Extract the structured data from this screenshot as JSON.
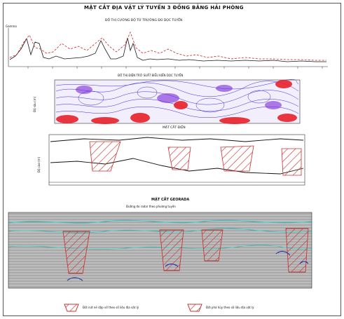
{
  "title": "MẶT CẮT ĐỊA VẬT LÝ TUYẾN 3  ĐỒNG BẰNG HẢI PHÒNG",
  "panels": {
    "magnetic": {
      "caption": "ĐỒ THỊ CƯỜNG ĐỘ TỪ TRƯỜNG ĐO DỌC TUYẾN",
      "ylabel": "Gamma"
    },
    "resistivity": {
      "caption": "ĐỒ THỊ ĐIỆN TRỞ SUẤT BIỂU KIẾN DỌC TUYẾN",
      "ylabel": "Độ sâu (m)",
      "bottom": "MẶT CẮT ĐIỆN"
    },
    "geology": {
      "ylabel": "Độ cao (m)"
    },
    "gpr": {
      "caption": "MẶT CẮT GEORADA",
      "subcaption": "Đường đo radar theo phương tuyến"
    }
  },
  "legend": [
    {
      "label": "Đới nứt nẻ dập vỡ theo số liệu địa vật lý",
      "color": "#d9534f"
    },
    {
      "label": "Đới phá hủy theo số liệu địa vật lý",
      "color": "#d9534f"
    }
  ],
  "colors": {
    "magnetic_line": "#1a1a1a",
    "magnetic_dash": "#cc2222",
    "resistivity_high": "#e8202a",
    "resistivity_low": "#3a2bd9",
    "hatch": "#cc3333",
    "radar_cyan": "#26c6c6"
  }
}
